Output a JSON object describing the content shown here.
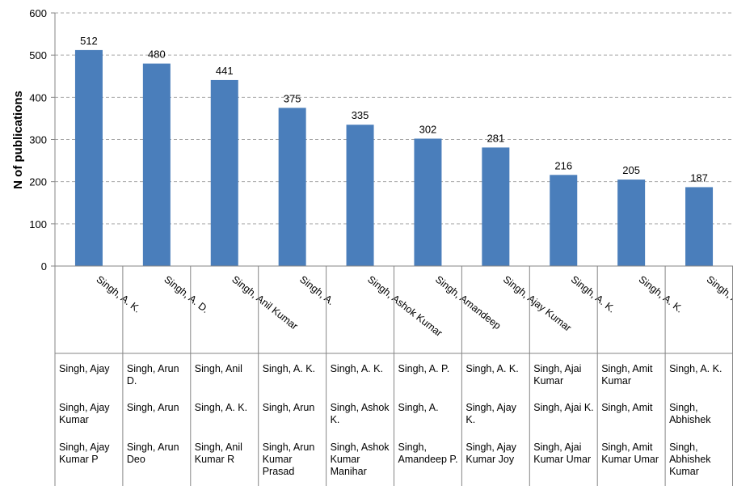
{
  "chart_data": {
    "type": "bar",
    "ylabel": "N of publications",
    "ylim": [
      0,
      600
    ],
    "yticks": [
      0,
      100,
      200,
      300,
      400,
      500,
      600
    ],
    "grid": "horizontal-dashed",
    "bar_color": "#4a7ebb",
    "categories": [
      "Singh, A. K.",
      "Singh, A. D.",
      "Singh, Anil Kumar",
      "Singh, A.",
      "Singh, Ashok Kumar",
      "Singh, Amandeep",
      "Singh, Ajay Kumar",
      "Singh, A. K.",
      "Singh, A. K.",
      "Singh, A."
    ],
    "values": [
      512,
      480,
      441,
      375,
      335,
      302,
      281,
      216,
      205,
      187
    ]
  },
  "variants": [
    [
      "Singh, Ajay",
      "Singh, Ajay Kumar",
      "Singh, Ajay Kumar P"
    ],
    [
      "Singh, Arun D.",
      "Singh, Arun",
      "Singh, Arun Deo"
    ],
    [
      "Singh, Anil",
      "Singh, A. K.",
      "Singh, Anil Kumar R"
    ],
    [
      "Singh, A. K.",
      "Singh, Arun",
      "Singh, Arun Kumar Prasad"
    ],
    [
      "Singh, A. K.",
      "Singh, Ashok K.",
      "Singh, Ashok Kumar Manihar"
    ],
    [
      "Singh, A. P.",
      "Singh, A.",
      "Singh, Amandeep P."
    ],
    [
      "Singh, A. K.",
      "Singh, Ajay K.",
      "Singh, Ajay Kumar Joy"
    ],
    [
      "Singh, Ajai Kumar",
      "Singh, Ajai K.",
      "Singh, Ajai Kumar Umar"
    ],
    [
      "Singh, Amit Kumar",
      "Singh, Amit",
      "Singh, Amit Kumar Umar"
    ],
    [
      "Singh, A. K.",
      "Singh, Abhishek",
      "Singh, Abhishek Kumar"
    ]
  ]
}
